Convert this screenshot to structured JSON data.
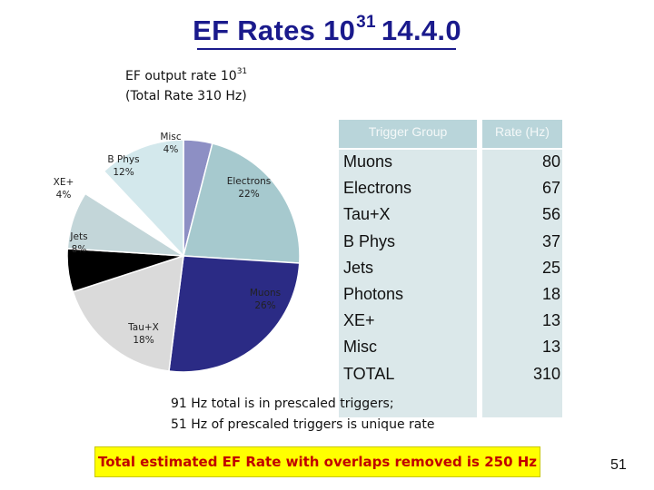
{
  "slide": {
    "title_main": "EF Rates 10",
    "title_sup": "31",
    "title_tail": "14.4.0",
    "page_number": "51"
  },
  "chart_title": {
    "line1_main": "EF output rate 10",
    "line1_sup": "31",
    "line2": "(Total Rate 310 Hz)"
  },
  "chart_data": {
    "type": "pie",
    "slices": [
      {
        "label": "Misc",
        "percent_label": "4%",
        "value": 4,
        "color": "#8d8fc4"
      },
      {
        "label": "Electrons",
        "percent_label": "22%",
        "value": 22,
        "color": "#a6c9ce"
      },
      {
        "label": "Muons",
        "percent_label": "26%",
        "value": 26,
        "color": "#2b2b85"
      },
      {
        "label": "Tau+X",
        "percent_label": "18%",
        "value": 18,
        "color": "#dadada"
      },
      {
        "label": "",
        "percent_label": "",
        "value": 6,
        "color": "#000000"
      },
      {
        "label": "Jets",
        "percent_label": "8%",
        "value": 8,
        "color": "#c3d6d9"
      },
      {
        "label": "XE+",
        "percent_label": "4%",
        "value": 4,
        "color": "#ffffff"
      },
      {
        "label": "B Phys",
        "percent_label": "12%",
        "value": 12,
        "color": "#d3e8ec"
      }
    ]
  },
  "table": {
    "header_group": "Trigger Group",
    "header_rate": "Rate (Hz)",
    "rows": [
      {
        "name": "Muons",
        "rate": "80"
      },
      {
        "name": "Electrons",
        "rate": "67"
      },
      {
        "name": "Tau+X",
        "rate": "56"
      },
      {
        "name": "B Phys",
        "rate": "37"
      },
      {
        "name": "Jets",
        "rate": "25"
      },
      {
        "name": "Photons",
        "rate": "18"
      },
      {
        "name": "XE+",
        "rate": "13"
      },
      {
        "name": "Misc",
        "rate": "13"
      },
      {
        "name": "TOTAL",
        "rate": "310"
      }
    ]
  },
  "notes": {
    "line1": "91 Hz total is in prescaled triggers;",
    "line2": "51 Hz of prescaled triggers is unique rate"
  },
  "banner": {
    "text": "Total estimated EF Rate with overlaps removed is 250 Hz",
    "background": "#ffff00",
    "text_color": "#c00000"
  }
}
